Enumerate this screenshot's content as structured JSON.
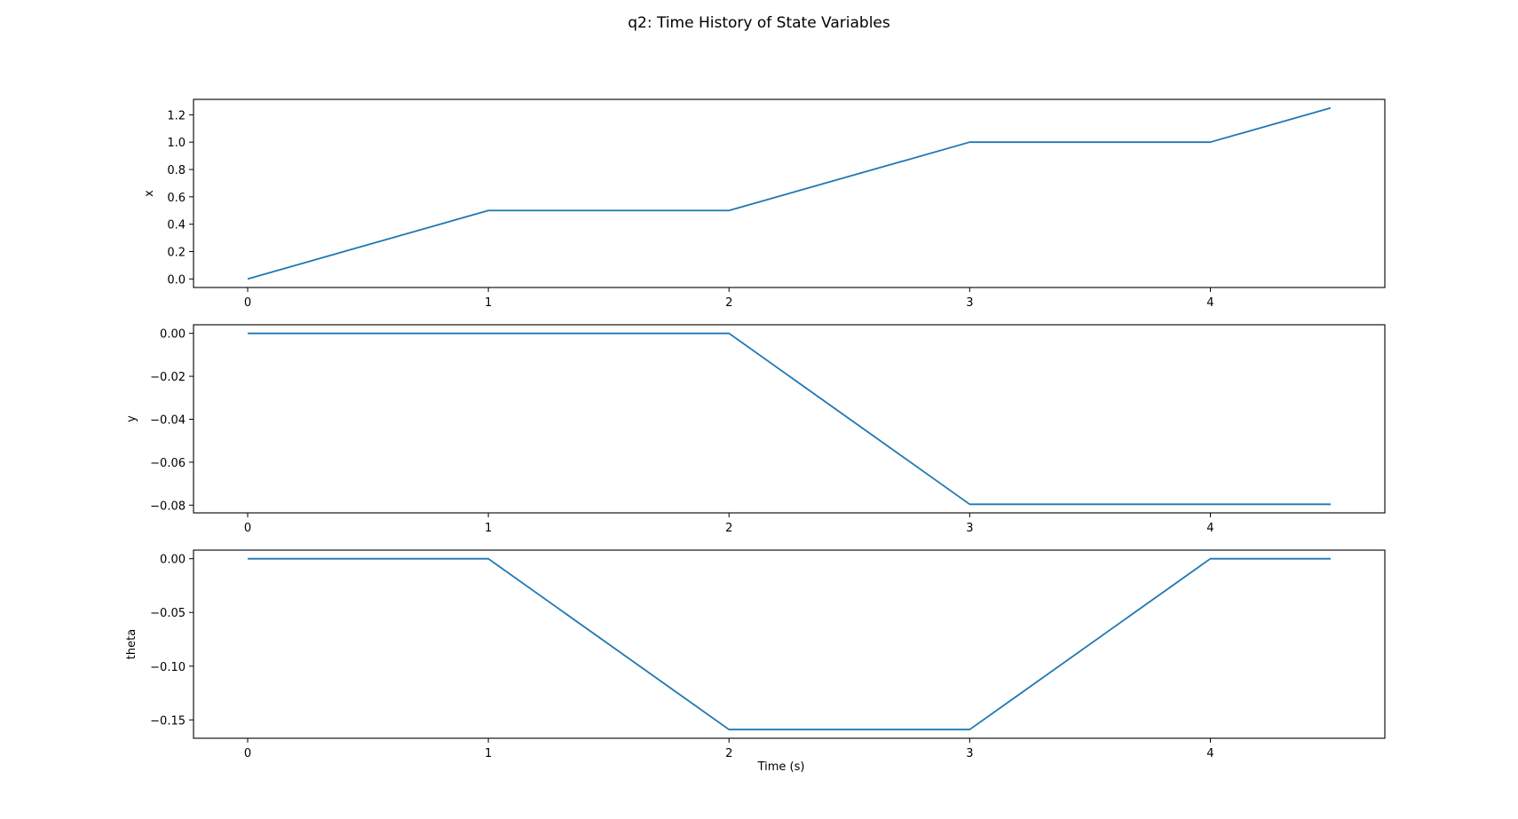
{
  "chart_data": {
    "type": "line",
    "title": "q2: Time History of State Variables",
    "colors": {
      "line": "#1f77b4",
      "axes": "#000000",
      "background": "#ffffff"
    },
    "grid": false,
    "xlabel": "Time (s)",
    "x": [
      0,
      1,
      2,
      3,
      4,
      4.5
    ],
    "xlim": [
      -0.225,
      4.725
    ],
    "xticks": [
      0,
      1,
      2,
      3,
      4
    ],
    "xtick_labels": [
      "0",
      "1",
      "2",
      "3",
      "4"
    ],
    "subplots": [
      {
        "ylabel": "x",
        "values": [
          0.0,
          0.5,
          0.5,
          1.0,
          1.0,
          1.25
        ],
        "ylim": [
          -0.0625,
          1.3125
        ],
        "yticks": [
          0.0,
          0.2,
          0.4,
          0.6,
          0.8,
          1.0,
          1.2
        ],
        "ytick_labels": [
          "0.0",
          "0.2",
          "0.4",
          "0.6",
          "0.8",
          "1.0",
          "1.2"
        ]
      },
      {
        "ylabel": "y",
        "values": [
          0.0,
          0.0,
          0.0,
          -0.0796,
          -0.0796,
          -0.0796
        ],
        "ylim": [
          -0.0836,
          0.004
        ],
        "yticks": [
          0.0,
          -0.02,
          -0.04,
          -0.06,
          -0.08
        ],
        "ytick_labels": [
          "0.00",
          "−0.02",
          "−0.04",
          "−0.06",
          "−0.08"
        ]
      },
      {
        "ylabel": "theta",
        "values": [
          0.0,
          0.0,
          -0.159,
          -0.159,
          0.0,
          0.0
        ],
        "ylim": [
          -0.1671,
          0.008
        ],
        "yticks": [
          0.0,
          -0.05,
          -0.1,
          -0.15
        ],
        "ytick_labels": [
          "0.00",
          "−0.05",
          "−0.10",
          "−0.15"
        ]
      }
    ]
  }
}
